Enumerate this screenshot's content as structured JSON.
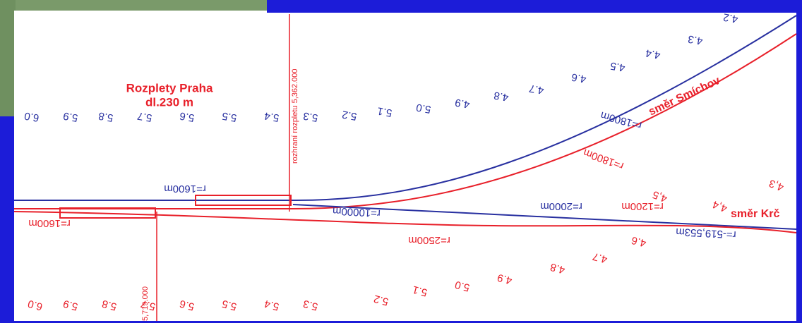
{
  "title": "Rozplety Praha",
  "length": "dl.230 m",
  "boundary": "rozhraní rozpletu 5,362.000",
  "boundary_bottom": "5,719.000",
  "directions": {
    "smichov": "směr Smíchov",
    "krc": "směr Krč"
  },
  "radii": {
    "blue_upper": "r=1800m",
    "red_upper": "r=1800m",
    "blue_left": "r=1600m",
    "red_left": "r=1600m",
    "blue_straight": "r=10000m",
    "blue_krc": "r=2000m",
    "red_krc": "r=1200m",
    "red_lower": "r=2500m",
    "red_end": "r=-519,553m"
  },
  "km_top": [
    "6.0",
    "5.9",
    "5.8",
    "5.7",
    "5.6",
    "5.5",
    "5.4",
    "5.3",
    "5.2",
    "5.1",
    "5.0",
    "4.9",
    "4.8",
    "4.7",
    "4.6",
    "4.5",
    "4.4",
    "4.3",
    "4.2"
  ],
  "km_bottom": [
    "6.0",
    "5.9",
    "5.8",
    "5.7",
    "5.6",
    "5.5",
    "5.4",
    "5.3",
    "5.2",
    "5.1",
    "5.0",
    "4.9",
    "4.8",
    "4.7",
    "4.6"
  ],
  "km_krc": [
    "4,5",
    "4,4",
    "4,3"
  ]
}
